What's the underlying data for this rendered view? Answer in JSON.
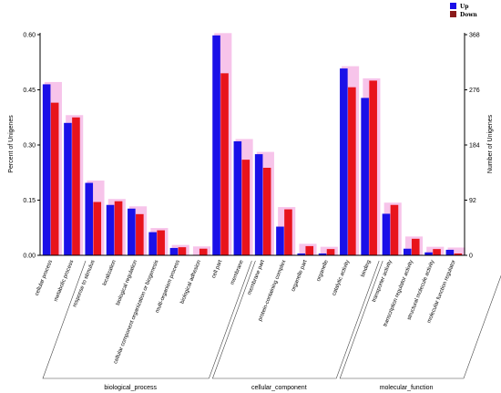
{
  "chart_data": {
    "type": "bar",
    "ylabel_left": "Percent of Unigenes",
    "ylabel_right": "Number of Unigenes",
    "left_ticks": [
      "0.00",
      "0.15",
      "0.30",
      "0.45",
      "0.60"
    ],
    "right_ticks": [
      "0",
      "92",
      "184",
      "276",
      "368"
    ],
    "ylim": [
      0,
      0.6
    ],
    "legend_placement": "top-right",
    "colors": {
      "Up": "#1a10e8",
      "Down": "#e8141c",
      "shadow": "#f7c4ea"
    },
    "series": [
      {
        "name": "Up",
        "values": [
          0.465,
          0.36,
          0.197,
          0.137,
          0.127,
          0.063,
          0.02,
          0.0,
          0.598,
          0.31,
          0.275,
          0.078,
          0.005,
          0.005,
          0.508,
          0.428,
          0.113,
          0.018,
          0.008,
          0.015
        ]
      },
      {
        "name": "Down",
        "values": [
          0.415,
          0.375,
          0.145,
          0.147,
          0.112,
          0.068,
          0.022,
          0.018,
          0.495,
          0.26,
          0.238,
          0.125,
          0.025,
          0.017,
          0.457,
          0.475,
          0.137,
          0.045,
          0.017,
          0.005
        ]
      }
    ],
    "categories": [
      "cellular process",
      "metabolic process",
      "response to stimulus",
      "localization",
      "biological regulation",
      "cellular component organization or biogenesis",
      "multi-organism process",
      "biological adhesion",
      "cell part",
      "membrane",
      "membrane part",
      "protein-containing complex",
      "organelle part",
      "organelle",
      "catalytic activity",
      "binding",
      "transporter activity",
      "transcription regulator activity",
      "structural molecule activity",
      "molecular function regulator"
    ],
    "groups": [
      {
        "name": "biological_process",
        "start": 0,
        "end": 7
      },
      {
        "name": "cellular_component",
        "start": 8,
        "end": 13
      },
      {
        "name": "molecular_function",
        "start": 14,
        "end": 19
      }
    ]
  }
}
